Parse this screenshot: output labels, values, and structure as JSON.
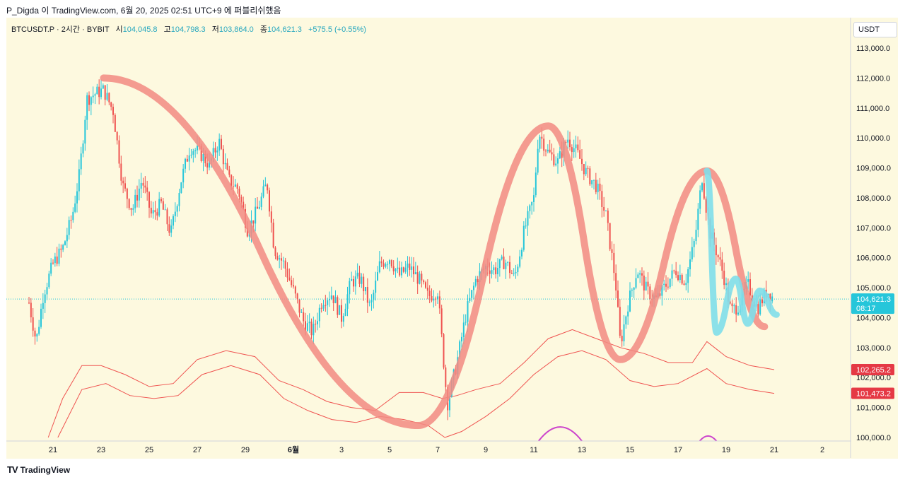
{
  "header": {
    "publish_text": "P_Digda 이 TradingView.com, 6월 20, 2025 02:51 UTC+9 에 퍼블리쉬했음"
  },
  "legend": {
    "symbol": "BTCUSDT.P · 2시간 · BYBIT",
    "open_label": "시",
    "open": "104,045.8",
    "high_label": "고",
    "high": "104,798.3",
    "low_label": "저",
    "low": "103,864.0",
    "close_label": "종",
    "close": "104,621.3",
    "change": "+575.5 (+0.55%)"
  },
  "price_axis": {
    "currency": "USDT",
    "labels": [
      "113,000.0",
      "112,000.0",
      "111,000.0",
      "110,000.0",
      "109,000.0",
      "108,000.0",
      "107,000.0",
      "106,000.0",
      "105,000.0",
      "104,000.0",
      "103,000.0",
      "102,000.0",
      "101,000.0",
      "100,000.0"
    ],
    "current_price_label": "104,621.3",
    "countdown": "08:17",
    "upper_band_label": "102,265.2",
    "lower_band_label": "101,473.2"
  },
  "time_axis": {
    "labels": [
      "21",
      "23",
      "25",
      "27",
      "29",
      "6월",
      "3",
      "5",
      "7",
      "9",
      "11",
      "13",
      "15",
      "17",
      "19",
      "21",
      "2"
    ]
  },
  "colors": {
    "up": "#26c6da",
    "down": "#ef5350",
    "background": "#fdf9df",
    "drawing_red": "#f28b82",
    "drawing_cyan": "#80deea",
    "band": "#ef5350",
    "purple": "#cc44cc"
  },
  "chart_data": {
    "type": "candlestick",
    "interval": "2시간",
    "ylim": [
      100000,
      113500
    ],
    "x_ticks": [
      "21",
      "23",
      "25",
      "27",
      "29",
      "6월",
      "3",
      "5",
      "7",
      "9",
      "11",
      "13",
      "15",
      "17",
      "19",
      "21",
      "2"
    ],
    "price_path": [
      {
        "day": 20.0,
        "price": 104500
      },
      {
        "day": 20.3,
        "price": 103200
      },
      {
        "day": 20.6,
        "price": 104800
      },
      {
        "day": 21.0,
        "price": 105800
      },
      {
        "day": 21.4,
        "price": 106300
      },
      {
        "day": 21.8,
        "price": 107400
      },
      {
        "day": 22.1,
        "price": 108800
      },
      {
        "day": 22.4,
        "price": 111300
      },
      {
        "day": 22.8,
        "price": 111500
      },
      {
        "day": 23.1,
        "price": 111600
      },
      {
        "day": 23.5,
        "price": 110900
      },
      {
        "day": 23.9,
        "price": 108400
      },
      {
        "day": 24.3,
        "price": 107600
      },
      {
        "day": 24.7,
        "price": 108600
      },
      {
        "day": 25.1,
        "price": 107400
      },
      {
        "day": 25.5,
        "price": 107800
      },
      {
        "day": 25.9,
        "price": 106800
      },
      {
        "day": 26.3,
        "price": 108500
      },
      {
        "day": 26.7,
        "price": 109700
      },
      {
        "day": 27.1,
        "price": 109500
      },
      {
        "day": 27.5,
        "price": 109100
      },
      {
        "day": 27.9,
        "price": 109900
      },
      {
        "day": 28.3,
        "price": 108600
      },
      {
        "day": 28.7,
        "price": 108300
      },
      {
        "day": 29.1,
        "price": 106900
      },
      {
        "day": 29.5,
        "price": 107600
      },
      {
        "day": 29.9,
        "price": 108500
      },
      {
        "day": 30.2,
        "price": 106300
      },
      {
        "day": 30.6,
        "price": 105800
      },
      {
        "day": 31.0,
        "price": 104900
      },
      {
        "day": 31.4,
        "price": 103900
      },
      {
        "day": 31.8,
        "price": 103500
      },
      {
        "day": 32.2,
        "price": 104600
      },
      {
        "day": 32.6,
        "price": 104800
      },
      {
        "day": 33.0,
        "price": 104000
      },
      {
        "day": 33.4,
        "price": 105200
      },
      {
        "day": 33.8,
        "price": 105300
      },
      {
        "day": 34.2,
        "price": 104300
      },
      {
        "day": 34.6,
        "price": 105800
      },
      {
        "day": 35.0,
        "price": 106000
      },
      {
        "day": 35.4,
        "price": 105400
      },
      {
        "day": 35.8,
        "price": 105700
      },
      {
        "day": 36.2,
        "price": 105300
      },
      {
        "day": 36.6,
        "price": 104700
      },
      {
        "day": 37.0,
        "price": 104900
      },
      {
        "day": 37.4,
        "price": 101100
      },
      {
        "day": 37.8,
        "price": 102500
      },
      {
        "day": 38.2,
        "price": 104200
      },
      {
        "day": 38.6,
        "price": 105300
      },
      {
        "day": 39.0,
        "price": 105700
      },
      {
        "day": 39.4,
        "price": 105600
      },
      {
        "day": 39.8,
        "price": 105900
      },
      {
        "day": 40.2,
        "price": 105300
      },
      {
        "day": 40.6,
        "price": 106900
      },
      {
        "day": 41.0,
        "price": 108000
      },
      {
        "day": 41.2,
        "price": 110200
      },
      {
        "day": 41.6,
        "price": 109500
      },
      {
        "day": 42.0,
        "price": 109200
      },
      {
        "day": 42.4,
        "price": 110000
      },
      {
        "day": 42.8,
        "price": 109500
      },
      {
        "day": 43.2,
        "price": 108800
      },
      {
        "day": 43.6,
        "price": 108400
      },
      {
        "day": 44.0,
        "price": 107400
      },
      {
        "day": 44.4,
        "price": 105200
      },
      {
        "day": 44.6,
        "price": 103100
      },
      {
        "day": 44.9,
        "price": 104400
      },
      {
        "day": 45.3,
        "price": 105600
      },
      {
        "day": 45.7,
        "price": 104900
      },
      {
        "day": 46.1,
        "price": 104600
      },
      {
        "day": 46.5,
        "price": 105100
      },
      {
        "day": 46.9,
        "price": 105600
      },
      {
        "day": 47.3,
        "price": 105200
      },
      {
        "day": 47.7,
        "price": 106600
      },
      {
        "day": 48.0,
        "price": 108700
      },
      {
        "day": 48.3,
        "price": 106900
      },
      {
        "day": 48.6,
        "price": 106200
      },
      {
        "day": 48.9,
        "price": 105400
      },
      {
        "day": 49.2,
        "price": 104200
      },
      {
        "day": 49.5,
        "price": 104400
      },
      {
        "day": 49.9,
        "price": 105100
      },
      {
        "day": 50.3,
        "price": 104300
      },
      {
        "day": 50.7,
        "price": 104900
      },
      {
        "day": 51.0,
        "price": 104621
      }
    ],
    "band_upper": [
      {
        "day": 20.8,
        "price": 100000
      },
      {
        "day": 21.4,
        "price": 101300
      },
      {
        "day": 22.2,
        "price": 102400
      },
      {
        "day": 23.0,
        "price": 102400
      },
      {
        "day": 24.0,
        "price": 102100
      },
      {
        "day": 25.0,
        "price": 101700
      },
      {
        "day": 26.0,
        "price": 101800
      },
      {
        "day": 27.0,
        "price": 102600
      },
      {
        "day": 28.2,
        "price": 102900
      },
      {
        "day": 29.4,
        "price": 102700
      },
      {
        "day": 30.4,
        "price": 101900
      },
      {
        "day": 31.4,
        "price": 101600
      },
      {
        "day": 32.4,
        "price": 101200
      },
      {
        "day": 33.4,
        "price": 101000
      },
      {
        "day": 34.4,
        "price": 100900
      },
      {
        "day": 35.4,
        "price": 101500
      },
      {
        "day": 36.4,
        "price": 101500
      },
      {
        "day": 37.2,
        "price": 101300
      },
      {
        "day": 37.8,
        "price": 101400
      },
      {
        "day": 38.6,
        "price": 101600
      },
      {
        "day": 39.6,
        "price": 101800
      },
      {
        "day": 40.6,
        "price": 102500
      },
      {
        "day": 41.6,
        "price": 103300
      },
      {
        "day": 42.6,
        "price": 103600
      },
      {
        "day": 43.6,
        "price": 103300
      },
      {
        "day": 44.6,
        "price": 103000
      },
      {
        "day": 45.6,
        "price": 102800
      },
      {
        "day": 46.6,
        "price": 102500
      },
      {
        "day": 47.6,
        "price": 102500
      },
      {
        "day": 48.2,
        "price": 103200
      },
      {
        "day": 49.0,
        "price": 102700
      },
      {
        "day": 50.0,
        "price": 102400
      },
      {
        "day": 51.0,
        "price": 102265
      }
    ],
    "band_lower": [
      {
        "day": 21.2,
        "price": 100000
      },
      {
        "day": 22.2,
        "price": 101600
      },
      {
        "day": 23.2,
        "price": 101800
      },
      {
        "day": 24.2,
        "price": 101400
      },
      {
        "day": 25.2,
        "price": 101300
      },
      {
        "day": 26.2,
        "price": 101400
      },
      {
        "day": 27.2,
        "price": 102100
      },
      {
        "day": 28.4,
        "price": 102400
      },
      {
        "day": 29.6,
        "price": 102100
      },
      {
        "day": 30.6,
        "price": 101300
      },
      {
        "day": 31.6,
        "price": 100900
      },
      {
        "day": 32.6,
        "price": 100600
      },
      {
        "day": 33.6,
        "price": 100500
      },
      {
        "day": 34.6,
        "price": 100700
      },
      {
        "day": 35.6,
        "price": 100600
      },
      {
        "day": 36.6,
        "price": 100400
      },
      {
        "day": 37.3,
        "price": 100000
      },
      {
        "day": 38.0,
        "price": 100200
      },
      {
        "day": 39.0,
        "price": 100700
      },
      {
        "day": 40.0,
        "price": 101300
      },
      {
        "day": 41.0,
        "price": 102100
      },
      {
        "day": 42.0,
        "price": 102700
      },
      {
        "day": 43.0,
        "price": 102900
      },
      {
        "day": 44.0,
        "price": 102600
      },
      {
        "day": 45.0,
        "price": 101900
      },
      {
        "day": 46.0,
        "price": 101700
      },
      {
        "day": 47.0,
        "price": 101800
      },
      {
        "day": 48.2,
        "price": 102300
      },
      {
        "day": 49.0,
        "price": 101800
      },
      {
        "day": 50.0,
        "price": 101600
      },
      {
        "day": 51.0,
        "price": 101473
      }
    ],
    "purple_arcs": [
      {
        "start_day": 41.2,
        "end_day": 43.0,
        "peak": 100350
      },
      {
        "start_day": 47.9,
        "end_day": 48.6,
        "peak": 100050
      }
    ],
    "drawings": {
      "red_path": [
        {
          "day": 23.1,
          "price": 112000
        },
        {
          "day": 36.2,
          "price": 100400
        },
        {
          "day": 41.6,
          "price": 110400
        },
        {
          "day": 44.6,
          "price": 102600
        },
        {
          "day": 48.2,
          "price": 108900
        },
        {
          "day": 50.6,
          "price": 103700
        }
      ],
      "cyan_path": [
        {
          "day": 48.2,
          "price": 108900
        },
        {
          "day": 48.6,
          "price": 103500
        },
        {
          "day": 49.4,
          "price": 105300
        },
        {
          "day": 49.9,
          "price": 103800
        },
        {
          "day": 50.4,
          "price": 104900
        },
        {
          "day": 51.1,
          "price": 104100
        }
      ]
    }
  },
  "brand": {
    "logo_text": "TV",
    "name": "TradingView"
  }
}
